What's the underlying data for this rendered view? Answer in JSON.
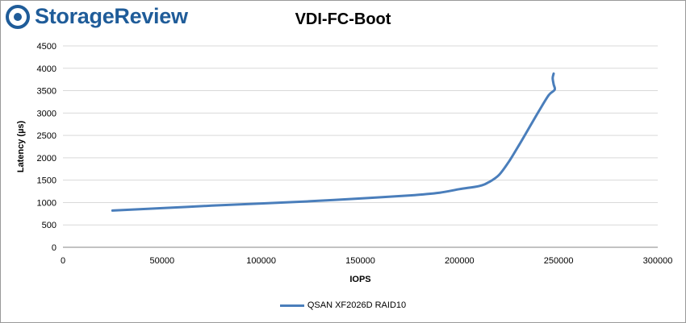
{
  "brand": {
    "name": "StorageReview",
    "color": "#1f5c99",
    "icon": "storagereview-logo-icon"
  },
  "chart_data": {
    "type": "line",
    "title": "VDI-FC-Boot",
    "xlabel": "IOPS",
    "ylabel": "Latency (µs)",
    "xlim": [
      0,
      300000
    ],
    "ylim": [
      0,
      4500
    ],
    "xticks": [
      0,
      50000,
      100000,
      150000,
      200000,
      250000,
      300000
    ],
    "yticks": [
      0,
      500,
      1000,
      1500,
      2000,
      2500,
      3000,
      3500,
      4000,
      4500
    ],
    "grid": "horizontal",
    "legend_position": "bottom",
    "series": [
      {
        "name": "QSAN XF2026D RAID10",
        "color": "#4a7ebb",
        "x": [
          25000,
          50000,
          75000,
          100000,
          125000,
          150000,
          175000,
          190000,
          200000,
          210000,
          215000,
          220000,
          225000,
          230000,
          235000,
          240000,
          245000,
          248000,
          247500,
          247000,
          247500
        ],
        "y": [
          820,
          875,
          930,
          980,
          1030,
          1090,
          1160,
          1220,
          1300,
          1370,
          1460,
          1620,
          1920,
          2280,
          2660,
          3040,
          3400,
          3520,
          3640,
          3780,
          3880
        ]
      }
    ]
  }
}
